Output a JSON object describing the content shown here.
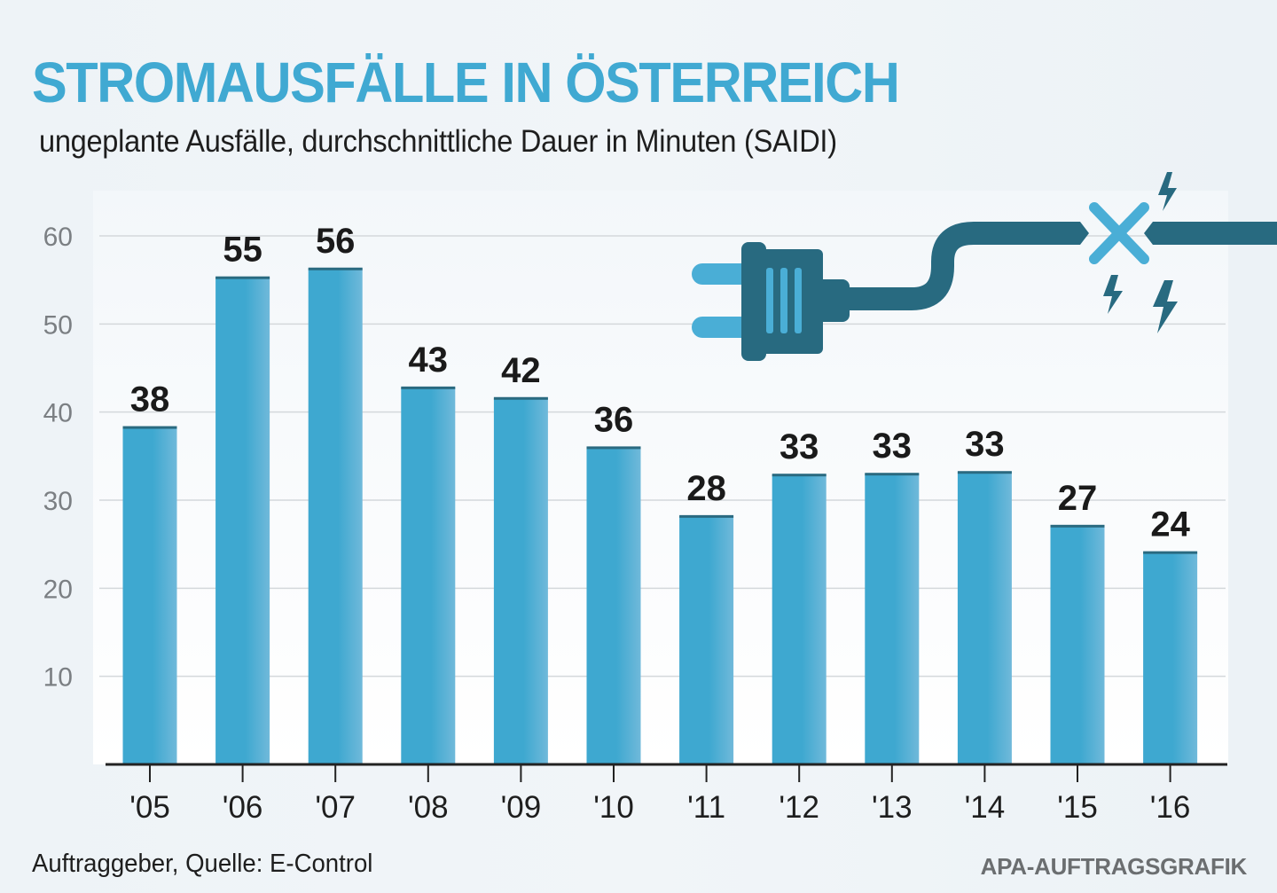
{
  "header": {
    "title": "STROMAUSFÄLLE IN ÖSTERREICH",
    "subtitle": "ungeplante Ausfälle, durchschnittliche Dauer in Minuten (SAIDI)"
  },
  "footer": {
    "source": "Auftraggeber, Quelle: E-Control",
    "credit": "APA-AUFTRAGSGRAFIK"
  },
  "illustration": {
    "icon": "unplugged-power-plug-icon",
    "description": "power plug with broken cable and lightning bolts"
  },
  "colors": {
    "title": "#40a9d2",
    "bar_start": "#3ea8d0",
    "bar_end": "#70b9da",
    "bar_cap": "#2a6a80",
    "plug_dark": "#286a80",
    "plug_light": "#4aaed6",
    "grid": "#d4d8db",
    "axis": "#222222"
  },
  "chart_data": {
    "type": "bar",
    "title": "STROMAUSFÄLLE IN ÖSTERREICH",
    "subtitle": "ungeplante Ausfälle, durchschnittliche Dauer in Minuten (SAIDI)",
    "xlabel": "",
    "ylabel": "",
    "categories": [
      "'05",
      "'06",
      "'07",
      "'08",
      "'09",
      "'10",
      "'11",
      "'12",
      "'13",
      "'14",
      "'15",
      "'16"
    ],
    "values": [
      38,
      55,
      56,
      43,
      42,
      36,
      28,
      33,
      33,
      33,
      27,
      24
    ],
    "plotted_values": [
      38.3,
      55.3,
      56.3,
      42.8,
      41.6,
      36.0,
      28.2,
      32.9,
      33.0,
      33.2,
      27.1,
      24.1
    ],
    "data_labels": [
      "38",
      "55",
      "56",
      "43",
      "42",
      "36",
      "28",
      "33",
      "33",
      "33",
      "27",
      "24"
    ],
    "yticks": [
      10,
      20,
      30,
      40,
      50,
      60
    ],
    "ytick_labels": [
      "10",
      "20",
      "30",
      "40",
      "50",
      "60"
    ],
    "ylim": [
      0,
      60
    ],
    "grid": true,
    "legend": "none"
  }
}
